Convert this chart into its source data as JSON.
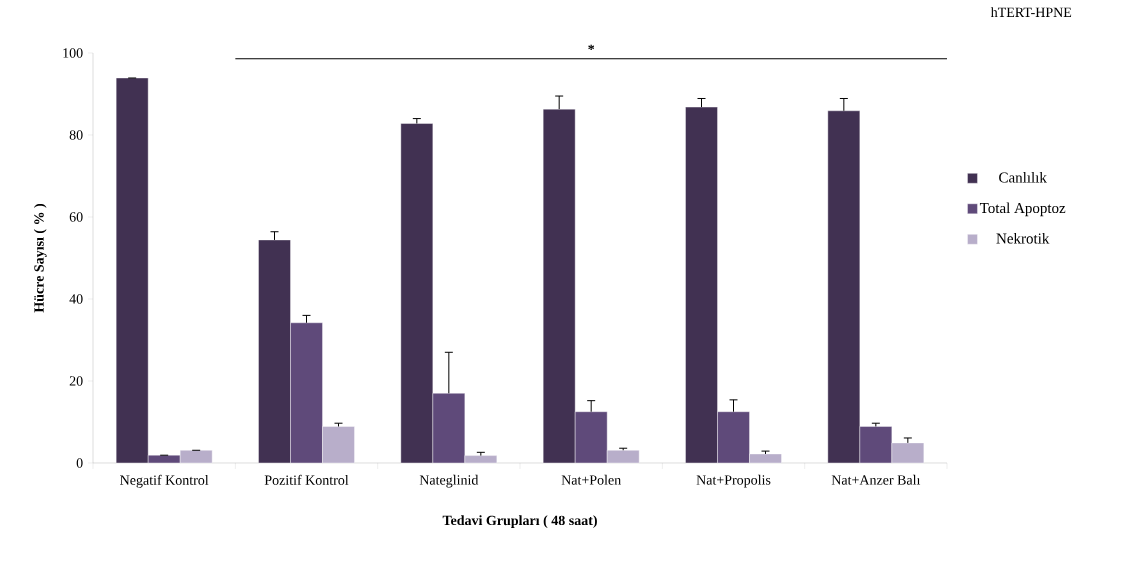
{
  "chart_data": {
    "type": "bar",
    "title": "hTERT-HPNE",
    "xlabel": "Tedavi  Grupları  ( 48 saat)",
    "ylabel": "Hücre Sayısı ( % )",
    "categories": [
      "Negatif Kontrol",
      "Pozitif Kontrol",
      "Nateglinid",
      "Nat+Polen",
      "Nat+Propolis",
      "Nat+Anzer Balı"
    ],
    "series": [
      {
        "name": "Canlılık",
        "color": "#413152",
        "values": [
          93.9,
          54.4,
          82.8,
          86.3,
          86.8,
          85.9
        ],
        "errors": [
          0,
          2,
          1.2,
          3.2,
          2.1,
          3
        ]
      },
      {
        "name": "Total Apoptoz",
        "color": "#5f4a7a",
        "values": [
          1.9,
          34.2,
          17,
          12.5,
          12.5,
          8.9
        ],
        "errors": [
          0,
          1.8,
          10,
          2.7,
          2.9,
          0.8
        ]
      },
      {
        "name": "Nekrotik",
        "color": "#b8aeca",
        "values": [
          3.1,
          8.9,
          1.8,
          3.1,
          2.2,
          4.9
        ],
        "errors": [
          0,
          0.8,
          0.8,
          0.5,
          0.7,
          1.2
        ]
      }
    ],
    "ylim": [
      0,
      100
    ],
    "yticks": [
      0,
      20,
      40,
      60,
      80,
      100
    ],
    "grid": false,
    "legend": "right",
    "ref_lines": [
      {
        "axis": "y",
        "value": 98.6,
        "label": "*",
        "color": "#000000"
      }
    ]
  }
}
